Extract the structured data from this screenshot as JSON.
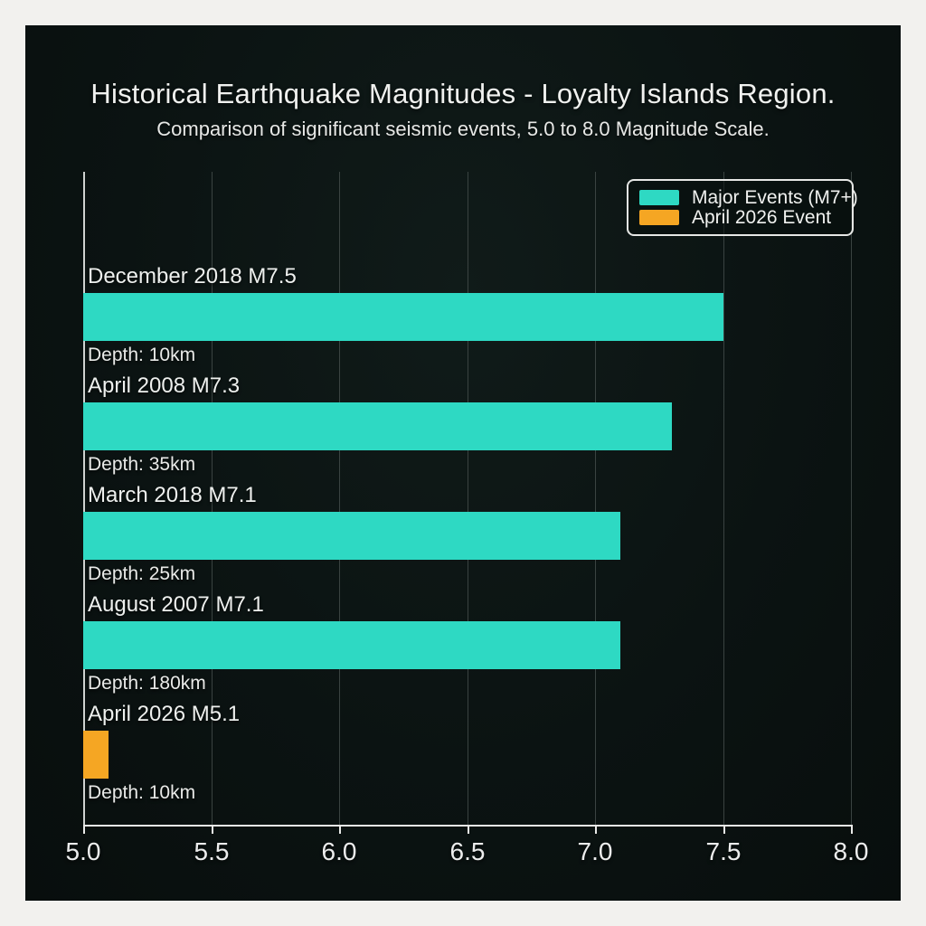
{
  "header": {
    "title": "Historical Earthquake Magnitudes - Loyalty Islands Region.",
    "subtitle": "Comparison of significant seismic events, 5.0 to 8.0 Magnitude Scale."
  },
  "colors": {
    "panel_background": "#0b1312",
    "frame_background": "#f2f1ee",
    "teal_series": "#2ed9c3",
    "orange_series": "#f5a623",
    "gridline": "#3a4341",
    "axis": "#e9eae8",
    "text": "#eceded"
  },
  "legend": {
    "items": [
      {
        "label": "Major Events (M7+)",
        "color": "#2ed9c3"
      },
      {
        "label": "April 2026 Event",
        "color": "#f5a623"
      }
    ]
  },
  "chart_data": {
    "type": "bar",
    "orientation": "horizontal",
    "title": "Historical Earthquake Magnitudes - Loyalty Islands Region.",
    "subtitle": "Comparison of significant seismic events, 5.0 to 8.0 Magnitude Scale.",
    "xlim": [
      5.0,
      8.0
    ],
    "x_ticks": [
      "5.0",
      "5.5",
      "6.0",
      "6.5",
      "7.0",
      "7.5",
      "8.0"
    ],
    "grid": true,
    "legend_position": "top-right",
    "rows": [
      {
        "label": "December 2018 M7.5",
        "depth": "Depth: 10km",
        "magnitude": 7.5,
        "series": "Major Events (M7+)",
        "color": "#2ed9c3"
      },
      {
        "label": "April 2008 M7.3",
        "depth": "Depth: 35km",
        "magnitude": 7.3,
        "series": "Major Events (M7+)",
        "color": "#2ed9c3"
      },
      {
        "label": "March 2018 M7.1",
        "depth": "Depth: 25km",
        "magnitude": 7.1,
        "series": "Major Events (M7+)",
        "color": "#2ed9c3"
      },
      {
        "label": "August 2007 M7.1",
        "depth": "Depth: 180km",
        "magnitude": 7.1,
        "series": "Major Events (M7+)",
        "color": "#2ed9c3"
      },
      {
        "label": "April 2026 M5.1",
        "depth": "Depth: 10km",
        "magnitude": 5.1,
        "series": "April 2026 Event",
        "color": "#f5a623"
      }
    ]
  }
}
